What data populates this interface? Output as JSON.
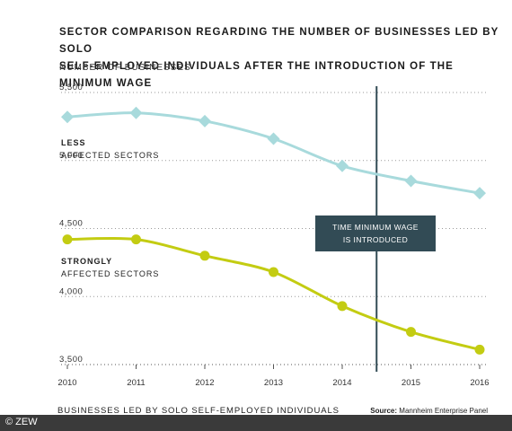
{
  "title_line1": "SECTOR COMPARISON REGARDING THE NUMBER OF BUSINESSES LED BY SOLO",
  "title_line2": "SELF-EMPLOYED INDIVIDUALS AFTER THE INTRODUCTION OF THE MINIMUM WAGE",
  "footer_left": "BUSINESSES LED BY SOLO SELF-EMPLOYED INDIVIDUALS",
  "source_label": "Source:",
  "source_text": "Mannheim Enterprise Panel",
  "copyright": "© ZEW",
  "annotation_line1": "TIME MINIMUM WAGE",
  "annotation_line2": "IS INTRODUCED",
  "series_labels": [
    {
      "bold": "LESS",
      "regular": "AFFECTED SECTORS"
    },
    {
      "bold": "STRONGLY",
      "regular": "AFFECTED SECTORS"
    }
  ],
  "colors": {
    "less": "#a8dadc",
    "strongly": "#c3cc12",
    "grid": "#9a9a9a",
    "axis": "#555555",
    "annotation_line": "#324b55",
    "annotation_bg": "#324b55"
  },
  "chart_data": {
    "type": "line",
    "title": "SECTOR COMPARISON REGARDING THE NUMBER OF BUSINESSES LED BY SOLO SELF-EMPLOYED INDIVIDUALS AFTER THE INTRODUCTION OF THE MINIMUM WAGE",
    "ylabel": "NUMBER OF BUSINESSES",
    "xlabel": "BUSINESSES LED BY SOLO SELF-EMPLOYED INDIVIDUALS",
    "x": [
      "2010",
      "2011",
      "2012",
      "2013",
      "2014",
      "2015",
      "2016"
    ],
    "ylim": [
      3500,
      5500
    ],
    "yticks": [
      3500,
      4000,
      4500,
      5000,
      5500
    ],
    "ytick_labels": [
      "3,500",
      "4,000",
      "4,500",
      "5,000",
      "5,500"
    ],
    "grid": "horizontal dotted",
    "series": [
      {
        "name": "LESS AFFECTED SECTORS",
        "marker": "diamond",
        "values": [
          5320,
          5350,
          5290,
          5160,
          4960,
          4850,
          4760
        ]
      },
      {
        "name": "STRONGLY AFFECTED SECTORS",
        "marker": "circle",
        "values": [
          4420,
          4420,
          4300,
          4180,
          3930,
          3740,
          3610
        ]
      }
    ],
    "annotation": {
      "x": 2014.5,
      "text": "TIME MINIMUM WAGE IS INTRODUCED"
    }
  }
}
